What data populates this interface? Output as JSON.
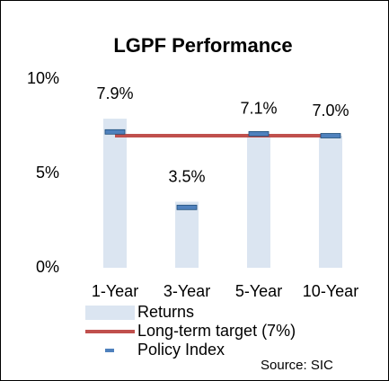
{
  "chart_data": {
    "type": "bar",
    "title": "LGPF Performance",
    "categories": [
      "1-Year",
      "3-Year",
      "5-Year",
      "10-Year"
    ],
    "series": [
      {
        "name": "Returns",
        "type": "bar",
        "color": "#dbe5f1",
        "values": [
          7.9,
          3.5,
          7.1,
          7.0
        ],
        "value_labels": [
          "7.9%",
          "3.5%",
          "7.1%",
          "7.0%"
        ]
      },
      {
        "name": "Long-term target (7%)",
        "type": "line",
        "color": "#c0504d",
        "values": [
          7,
          7,
          7,
          7
        ]
      },
      {
        "name": "Policy Index",
        "type": "marker",
        "color": "#4f81bd",
        "values": [
          7.2,
          3.2,
          7.1,
          7.0
        ]
      }
    ],
    "ylim": [
      0,
      10
    ],
    "yticks": [
      {
        "value": 0,
        "label": "0%"
      },
      {
        "value": 5,
        "label": "5%"
      },
      {
        "value": 10,
        "label": "10%"
      }
    ],
    "source": "Source: SIC"
  }
}
